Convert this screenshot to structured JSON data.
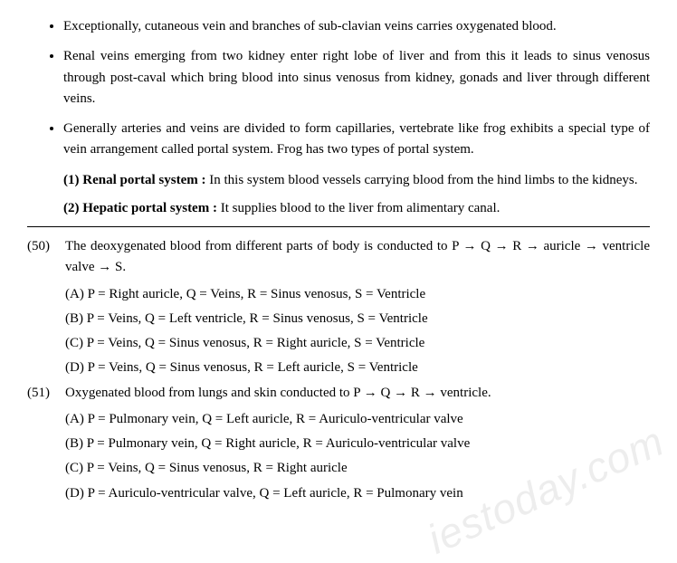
{
  "bullets": [
    "Exceptionally, cutaneous vein and branches of sub-clavian veins carries oxygenated blood.",
    "Renal veins emerging from two kidney enter right lobe of liver and from this it leads to sinus venosus through post-caval which bring blood into sinus venosus from kidney, gonads and liver through different veins.",
    "Generally arteries and veins are divided to form capillaries, vertebrate like frog exhibits a special type of vein arrangement called portal system. Frog has two types of portal system."
  ],
  "subs": [
    {
      "head": "(1) Renal portal system : ",
      "tail": "In this system blood vessels carrying blood from the hind limbs to the kidneys."
    },
    {
      "head": "(2) Hepatic portal system : ",
      "tail": "It supplies blood to the liver from alimentary canal."
    }
  ],
  "q50": {
    "num": "(50)",
    "stem": "The deoxygenated blood from different parts of body is conducted to P → Q → R → auricle → ventricle valve → S.",
    "opts": [
      "(A) P = Right auricle, Q = Veins, R = Sinus venosus, S = Ventricle",
      "(B) P = Veins, Q = Left ventricle, R = Sinus venosus, S = Ventricle",
      "(C) P = Veins, Q = Sinus venosus, R = Right auricle, S = Ventricle",
      "(D) P = Veins, Q = Sinus venosus, R = Left auricle, S = Ventricle"
    ]
  },
  "q51": {
    "num": "(51)",
    "stem": "Oxygenated blood from lungs and skin conducted to P → Q → R → ventricle.",
    "opts": [
      "(A) P = Pulmonary vein, Q = Left auricle, R = Auriculo-ventricular valve",
      "(B) P = Pulmonary vein, Q = Right auricle, R = Auriculo-ventricular valve",
      "(C) P = Veins, Q = Sinus venosus, R = Right auricle",
      "(D) P = Auriculo-ventricular valve, Q = Left auricle, R = Pulmonary vein"
    ]
  },
  "watermark": "iestoday.com"
}
